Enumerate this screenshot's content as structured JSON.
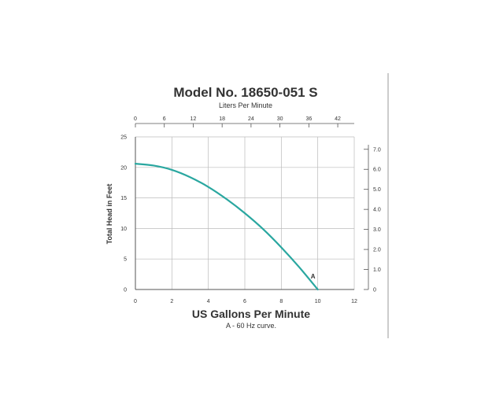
{
  "chart_data": {
    "type": "line",
    "title": "Model No. 18650-051 S",
    "top_axis_label": "Liters Per Minute",
    "xlabel": "US Gallons Per Minute",
    "ylabel": "Total Head in Feet",
    "caption": "A - 60 Hz curve.",
    "xlim": [
      0,
      12
    ],
    "ylim": [
      0,
      25
    ],
    "x_ticks": [
      "0",
      "2",
      "4",
      "6",
      "8",
      "10",
      "12"
    ],
    "y_ticks": [
      "0",
      "5",
      "10",
      "15",
      "20",
      "25"
    ],
    "top_ticks": [
      "0",
      "6",
      "12",
      "18",
      "24",
      "30",
      "36",
      "42"
    ],
    "top_lim": [
      0,
      45.42
    ],
    "right_ticks": [
      "0",
      "1.0",
      "2.0",
      "3.0",
      "4.0",
      "5.0",
      "6.0",
      "7.0"
    ],
    "right_lim": [
      0,
      7.62
    ],
    "grid": true,
    "series_color": "#2aa7a0",
    "series": [
      {
        "x": [
          0,
          1,
          2,
          3,
          4,
          5,
          6,
          7,
          8,
          9,
          10
        ],
        "y": [
          20.6,
          20.3,
          19.6,
          18.4,
          16.8,
          14.8,
          12.5,
          9.9,
          6.9,
          3.6,
          0
        ],
        "annotation": "A"
      }
    ]
  }
}
